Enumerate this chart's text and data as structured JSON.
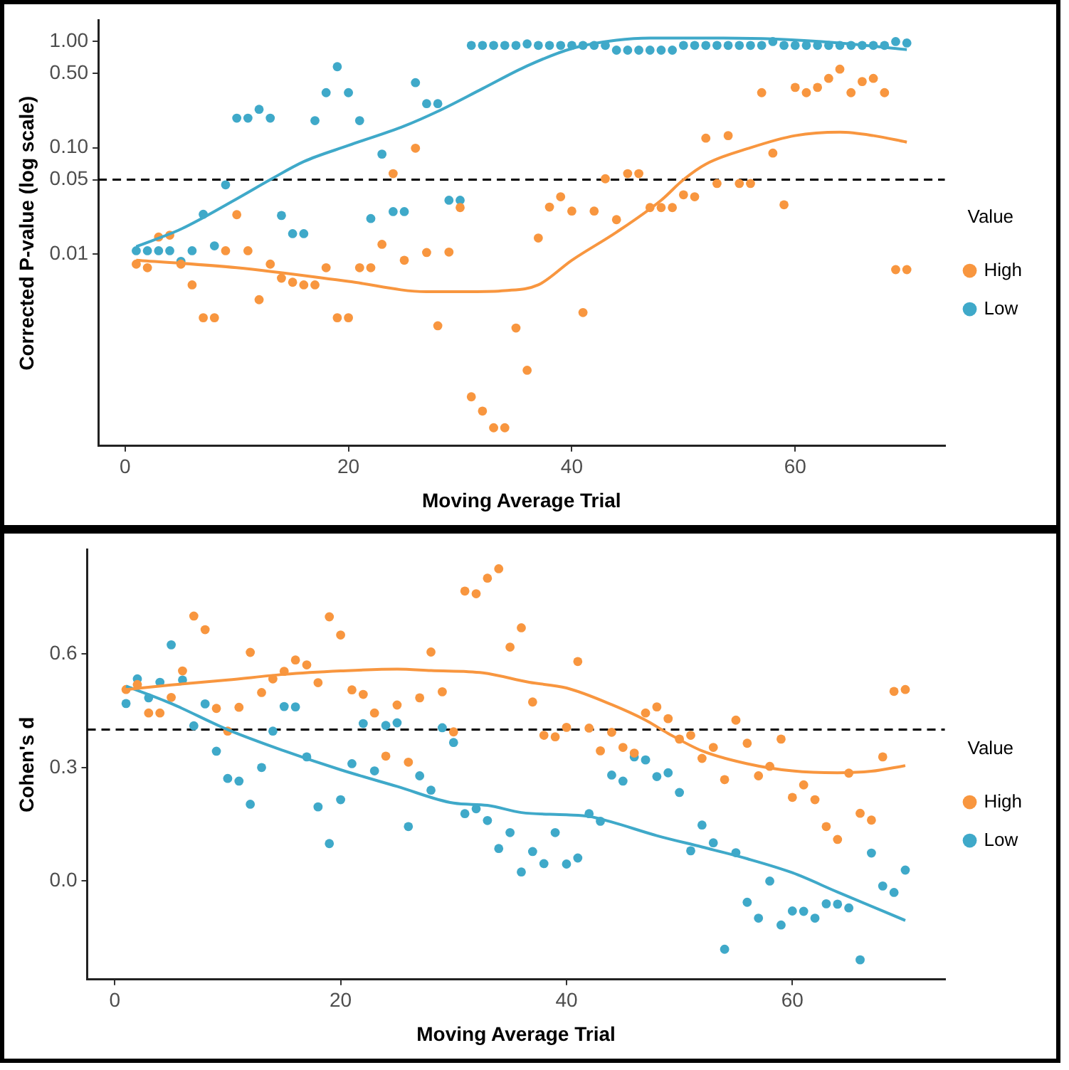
{
  "chart_data": [
    {
      "type": "scatter",
      "xlabel": "Moving Average Trial",
      "ylabel": "Corrected P-value (log scale)",
      "legend_title": "Value",
      "legend": "right",
      "grid": false,
      "log": "y",
      "marker": "circle",
      "xlim": [
        -2.4,
        73.4
      ],
      "xticks": [
        0,
        20,
        40,
        60
      ],
      "ylim": [
        0.000155,
        1.58
      ],
      "yticks": [
        {
          "value": 0.01,
          "label": "0.01"
        },
        {
          "value": 0.05,
          "label": "0.05"
        },
        {
          "value": 0.1,
          "label": "0.10"
        },
        {
          "value": 0.5,
          "label": "0.50"
        },
        {
          "value": 1,
          "label": "1.00"
        }
      ],
      "ref_lines": [
        {
          "axis": "y",
          "value": 0.05,
          "color": "#000000",
          "line_style": "dashed"
        }
      ],
      "x": [
        1,
        2,
        3,
        4,
        5,
        6,
        7,
        8,
        9,
        10,
        11,
        12,
        13,
        14,
        15,
        16,
        17,
        18,
        19,
        20,
        21,
        22,
        23,
        24,
        25,
        26,
        27,
        28,
        29,
        30,
        31,
        32,
        33,
        34,
        35,
        36,
        37,
        38,
        39,
        40,
        41,
        42,
        43,
        44,
        45,
        46,
        47,
        48,
        49,
        50,
        51,
        52,
        53,
        54,
        55,
        56,
        57,
        58,
        59,
        60,
        61,
        62,
        63,
        64,
        65,
        66,
        67,
        68,
        69,
        70
      ],
      "series": [
        {
          "name": "High",
          "type": "scatter",
          "color": "#f8963f",
          "values": [
            0.008,
            0.0074,
            0.0144,
            0.015,
            0.008,
            0.0051,
            0.0025,
            0.0025,
            0.0107,
            0.0234,
            0.0107,
            0.0037,
            0.008,
            0.0059,
            0.0054,
            0.0051,
            0.0051,
            0.0074,
            0.0025,
            0.0025,
            0.0074,
            0.0074,
            0.0123,
            0.057,
            0.0087,
            0.099,
            0.0103,
            0.0021,
            0.0104,
            0.0273,
            0.00045,
            0.00033,
            0.00023,
            0.00023,
            0.002,
            0.0008,
            0.0141,
            0.0276,
            0.0345,
            0.0253,
            0.0028,
            0.0253,
            0.051,
            0.021,
            0.057,
            0.057,
            0.0273,
            0.0273,
            0.0273,
            0.036,
            0.0345,
            0.123,
            0.046,
            0.13,
            0.046,
            0.046,
            0.33,
            0.089,
            0.029,
            0.37,
            0.33,
            0.37,
            0.45,
            0.55,
            0.33,
            0.42,
            0.45,
            0.33,
            0.0071,
            0.0071
          ]
        },
        {
          "name": "Low",
          "type": "scatter",
          "color": "#3fa9c9",
          "values": [
            0.0107,
            0.0107,
            0.0107,
            0.0107,
            0.0085,
            0.0107,
            0.0236,
            0.0119,
            0.0447,
            0.19,
            0.19,
            0.23,
            0.19,
            0.023,
            0.0155,
            0.0155,
            0.18,
            0.33,
            0.58,
            0.33,
            0.18,
            0.0215,
            0.087,
            0.025,
            0.025,
            0.41,
            0.26,
            0.26,
            0.032,
            0.032,
            0.92,
            0.92,
            0.92,
            0.92,
            0.92,
            0.95,
            0.92,
            0.92,
            0.92,
            0.92,
            0.92,
            0.92,
            0.92,
            0.83,
            0.83,
            0.83,
            0.83,
            0.83,
            0.83,
            0.92,
            0.92,
            0.92,
            0.92,
            0.92,
            0.92,
            0.92,
            0.92,
            1.0,
            0.92,
            0.92,
            0.92,
            0.92,
            0.92,
            0.92,
            0.92,
            0.92,
            0.92,
            0.92,
            1.0,
            0.97
          ]
        },
        {
          "type": "line",
          "marker": "none",
          "color": "#f8963f",
          "x": [
            1,
            10,
            20,
            27,
            31,
            34,
            37,
            40,
            44,
            48,
            50,
            52,
            56,
            60,
            64,
            67,
            70
          ],
          "values": [
            0.0087,
            0.0074,
            0.0055,
            0.0044,
            0.0044,
            0.0045,
            0.0051,
            0.0087,
            0.016,
            0.032,
            0.05,
            0.07,
            0.1,
            0.13,
            0.14,
            0.13,
            0.113
          ]
        },
        {
          "type": "line",
          "marker": "none",
          "color": "#3fa9c9",
          "x": [
            1,
            5,
            10,
            13,
            16,
            20,
            25,
            28,
            32,
            36,
            40,
            44,
            47,
            52,
            58,
            64,
            70
          ],
          "values": [
            0.0117,
            0.0171,
            0.033,
            0.05,
            0.074,
            0.105,
            0.16,
            0.22,
            0.36,
            0.59,
            0.86,
            1.03,
            1.08,
            1.08,
            1.06,
            0.97,
            0.84
          ]
        }
      ]
    },
    {
      "type": "scatter",
      "xlabel": "Moving Average Trial",
      "ylabel": "Cohen's d",
      "legend_title": "Value",
      "legend": "right",
      "grid": false,
      "marker": "circle",
      "xlim": [
        -2.44,
        73.5
      ],
      "xticks": [
        0,
        20,
        40,
        60
      ],
      "ylim": [
        -0.26,
        0.875
      ],
      "yticks": [
        {
          "value": 0,
          "label": "0.0"
        },
        {
          "value": 0.3,
          "label": "0.3"
        },
        {
          "value": 0.6,
          "label": "0.6"
        }
      ],
      "ref_lines": [
        {
          "axis": "y",
          "value": 0.4,
          "color": "#000000",
          "line_style": "dashed"
        }
      ],
      "x": [
        1,
        2,
        3,
        4,
        5,
        6,
        7,
        8,
        9,
        10,
        11,
        12,
        13,
        14,
        15,
        16,
        17,
        18,
        19,
        20,
        21,
        22,
        23,
        24,
        25,
        26,
        27,
        28,
        29,
        30,
        31,
        32,
        33,
        34,
        35,
        36,
        37,
        38,
        39,
        40,
        41,
        42,
        43,
        44,
        45,
        46,
        47,
        48,
        49,
        50,
        51,
        52,
        53,
        54,
        55,
        56,
        57,
        58,
        59,
        60,
        61,
        62,
        63,
        64,
        65,
        66,
        67,
        68,
        69,
        70
      ],
      "series": [
        {
          "name": "High",
          "type": "scatter",
          "color": "#f8963f",
          "values": [
            0.506,
            0.519,
            0.444,
            0.444,
            0.485,
            0.555,
            0.7,
            0.664,
            0.456,
            0.396,
            0.459,
            0.604,
            0.498,
            0.534,
            0.554,
            0.584,
            0.571,
            0.524,
            0.698,
            0.65,
            0.505,
            0.493,
            0.444,
            0.33,
            0.465,
            0.314,
            0.484,
            0.605,
            0.5,
            0.394,
            0.766,
            0.759,
            0.8,
            0.825,
            0.618,
            0.669,
            0.473,
            0.385,
            0.381,
            0.406,
            0.58,
            0.404,
            0.344,
            0.393,
            0.353,
            0.338,
            0.444,
            0.46,
            0.429,
            0.375,
            0.385,
            0.324,
            0.353,
            0.268,
            0.425,
            0.364,
            0.278,
            0.303,
            0.375,
            0.221,
            0.254,
            0.215,
            0.144,
            0.11,
            0.285,
            0.179,
            0.161,
            0.328,
            0.501,
            0.506
          ]
        },
        {
          "name": "Low",
          "type": "scatter",
          "color": "#3fa9c9",
          "values": [
            0.469,
            0.534,
            0.484,
            0.525,
            0.624,
            0.531,
            0.41,
            0.468,
            0.343,
            0.271,
            0.264,
            0.203,
            0.3,
            0.396,
            0.461,
            0.46,
            0.328,
            0.196,
            0.099,
            0.215,
            0.31,
            0.416,
            0.291,
            0.411,
            0.418,
            0.144,
            0.278,
            0.24,
            0.405,
            0.366,
            0.178,
            0.191,
            0.16,
            0.086,
            0.128,
            0.024,
            0.078,
            0.046,
            0.128,
            0.045,
            0.061,
            0.178,
            0.158,
            0.28,
            0.264,
            0.328,
            0.32,
            0.276,
            0.286,
            0.234,
            0.08,
            0.148,
            0.101,
            -0.18,
            0.075,
            -0.056,
            -0.098,
            0.0,
            -0.116,
            -0.079,
            -0.08,
            -0.098,
            -0.06,
            -0.061,
            -0.071,
            -0.208,
            0.074,
            -0.013,
            -0.03,
            0.029
          ]
        },
        {
          "type": "line",
          "marker": "none",
          "color": "#f8963f",
          "x": [
            1,
            5,
            10,
            15,
            20,
            25,
            28,
            32.6,
            36.7,
            40,
            44,
            47,
            49,
            52,
            56,
            60,
            64,
            67,
            70
          ],
          "values": [
            0.506,
            0.518,
            0.531,
            0.546,
            0.555,
            0.56,
            0.556,
            0.55,
            0.525,
            0.51,
            0.466,
            0.425,
            0.39,
            0.344,
            0.31,
            0.291,
            0.286,
            0.29,
            0.305
          ]
        },
        {
          "type": "line",
          "marker": "none",
          "color": "#3fa9c9",
          "x": [
            1,
            5,
            10,
            15,
            20,
            25,
            30,
            33,
            36,
            40,
            42,
            44,
            48,
            52,
            56,
            60,
            64,
            70
          ],
          "values": [
            0.515,
            0.469,
            0.4,
            0.344,
            0.294,
            0.25,
            0.206,
            0.2,
            0.181,
            0.175,
            0.171,
            0.156,
            0.12,
            0.09,
            0.059,
            0.022,
            -0.029,
            -0.104
          ]
        }
      ]
    }
  ]
}
